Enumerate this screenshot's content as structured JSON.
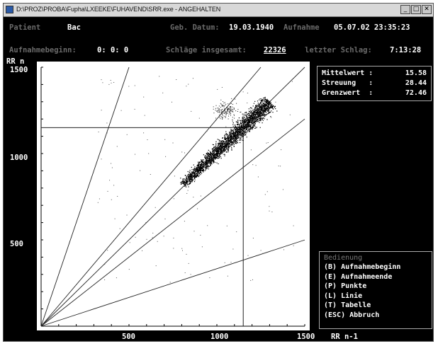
{
  "window": {
    "title": "D:\\PROZ\\PROBA\\Fupha\\LXEEKE\\FUHAVEND\\SRR.exe - ANGEHALTEN",
    "minimize": "_",
    "maximize": "□",
    "close": "✕"
  },
  "header": {
    "patient_label": "Patient",
    "patient_value": "Bac",
    "birthdate_label": "Geb. Datum:",
    "birthdate_value": "19.03.1940",
    "recording_label": "Aufnahme",
    "recording_value": "05.07.02 23:35:23",
    "start_label": "Aufnahmebeginn:",
    "start_value": "0: 0: 0",
    "beats_label": "Schläge insgesamt:",
    "beats_value": "22326",
    "last_beat_label": "letzter Schlag:",
    "last_beat_value": "7:13:28"
  },
  "chart_data": {
    "type": "scatter",
    "title": "",
    "ylabel": "RR n",
    "xlabel": "RR n-1",
    "xlim": [
      0,
      1500
    ],
    "ylim": [
      0,
      1500
    ],
    "x_ticks": [
      "500",
      "1000",
      "1500"
    ],
    "y_ticks": [
      "1500",
      "1000",
      "500"
    ],
    "crosshair": {
      "x": 1150,
      "y": 1150
    },
    "reference_lines_slope": [
      3.0,
      1.2,
      1.0,
      0.8,
      0.333
    ],
    "cluster": {
      "center_x": 1000,
      "center_y": 1000,
      "main_axis_from": [
        800,
        820
      ],
      "main_axis_to": [
        1300,
        1300
      ],
      "points": 2600,
      "outlier_cluster_center": [
        1050,
        1250
      ]
    }
  },
  "stats": {
    "mean_label": "Mittelwert :",
    "mean_value": "15.58",
    "spread_label": "Streuung   :",
    "spread_value": "28.44",
    "limit_label": "Grenzwert  :",
    "limit_value": "72.46"
  },
  "menu": {
    "title": "Bedienung",
    "items": [
      {
        "key": "(B)",
        "label": "Aufnahmebeginn"
      },
      {
        "key": "(E)",
        "label": "Aufnahmeende"
      },
      {
        "key": "(P)",
        "label": "Punkte"
      },
      {
        "key": "(L)",
        "label": "Linie"
      },
      {
        "key": "(T)",
        "label": "Tabelle"
      },
      {
        "key": "(ESC)",
        "label": "Abbruch"
      }
    ]
  }
}
